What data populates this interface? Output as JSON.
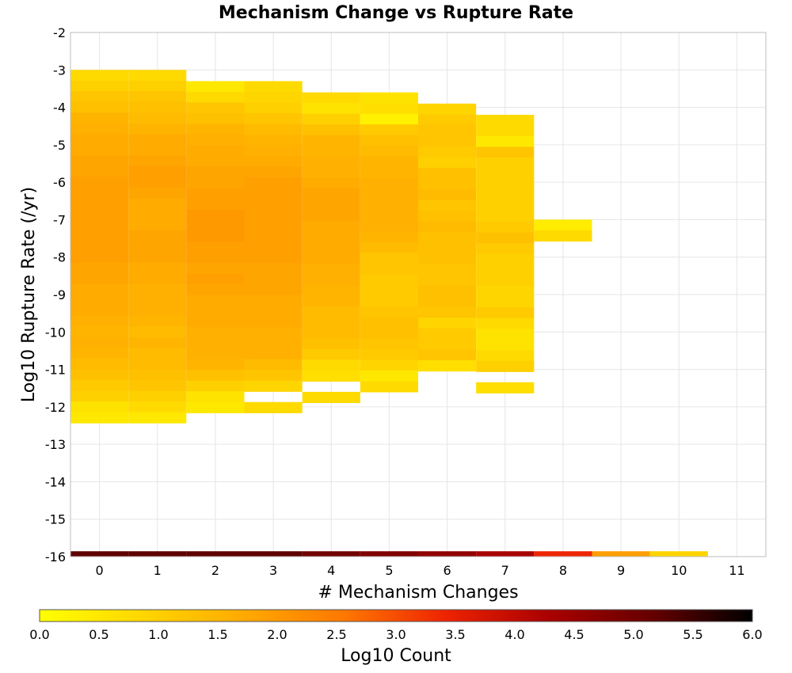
{
  "chart_data": {
    "type": "heatmap",
    "title": "Mechanism Change vs Rupture Rate",
    "xlabel": "# Mechanism Changes",
    "ylabel": "Log10 Rupture Rate (/yr)",
    "xlim": [
      -0.5,
      11.5
    ],
    "ylim": [
      -16,
      -2
    ],
    "x_ticks": [
      0,
      1,
      2,
      3,
      4,
      5,
      6,
      7,
      8,
      9,
      10,
      11
    ],
    "y_ticks": [
      -2,
      -3,
      -4,
      -5,
      -6,
      -7,
      -8,
      -9,
      -10,
      -11,
      -12,
      -13,
      -14,
      -15,
      -16
    ],
    "y_bin_size": 0.2857,
    "colorbar": {
      "label": "Log10 Count",
      "range": [
        0,
        6
      ],
      "ticks": [
        "0.0",
        "0.5",
        "1.0",
        "1.5",
        "2.0",
        "2.5",
        "3.0",
        "3.5",
        "4.0",
        "4.5",
        "5.0",
        "5.5",
        "6.0"
      ],
      "stops": [
        "#ffff00",
        "#ffd700",
        "#ffaa00",
        "#ff7700",
        "#ee2200",
        "#aa0000",
        "#660000",
        "#000000"
      ]
    },
    "columns": [
      {
        "x": 0,
        "y_top": -3.0,
        "values": [
          0.8,
          1.0,
          1.2,
          1.3,
          1.5,
          1.6,
          1.7,
          1.7,
          1.8,
          1.8,
          1.9,
          1.9,
          1.9,
          1.9,
          1.9,
          1.9,
          1.9,
          1.9,
          1.8,
          1.8,
          1.7,
          1.7,
          1.7,
          1.6,
          1.5,
          1.6,
          1.5,
          1.4,
          1.3,
          1.1,
          1.0,
          0.6,
          0.5
        ]
      },
      {
        "x": 1,
        "y_top": -3.0,
        "values": [
          0.8,
          1.0,
          1.2,
          1.3,
          1.4,
          1.5,
          1.7,
          1.7,
          1.8,
          1.9,
          1.9,
          1.8,
          1.7,
          1.7,
          1.7,
          1.8,
          1.8,
          1.8,
          1.7,
          1.7,
          1.6,
          1.6,
          1.6,
          1.5,
          1.4,
          1.5,
          1.4,
          1.4,
          1.3,
          1.2,
          1.0,
          0.8,
          0.5
        ]
      },
      {
        "x": 2,
        "y_top": -3.3,
        "values": [
          0.5,
          0.8,
          1.2,
          1.3,
          1.5,
          1.6,
          1.7,
          1.7,
          1.8,
          1.8,
          1.9,
          1.9,
          2.0,
          2.0,
          2.0,
          1.9,
          1.9,
          1.8,
          1.9,
          1.8,
          1.7,
          1.7,
          1.7,
          1.6,
          1.6,
          1.6,
          1.5,
          1.3,
          1.0,
          0.6,
          0.5
        ]
      },
      {
        "x": 3,
        "y_top": -3.3,
        "values": [
          0.8,
          0.9,
          1.0,
          1.2,
          1.4,
          1.5,
          1.6,
          1.7,
          1.8,
          1.9,
          1.9,
          1.9,
          1.9,
          1.9,
          1.9,
          1.9,
          1.9,
          1.8,
          1.8,
          1.8,
          1.7,
          1.7,
          1.7,
          1.6,
          1.6,
          1.6,
          1.4,
          1.2,
          0.9,
          null,
          0.8
        ]
      },
      {
        "x": 4,
        "y_top": -3.6,
        "values": [
          0.8,
          0.6,
          1.0,
          1.3,
          1.5,
          1.5,
          1.6,
          1.6,
          1.7,
          1.8,
          1.8,
          1.8,
          1.7,
          1.7,
          1.7,
          1.7,
          1.6,
          1.6,
          1.5,
          1.5,
          1.4,
          1.4,
          1.4,
          1.3,
          1.1,
          0.8,
          0.7,
          null,
          0.8
        ]
      },
      {
        "x": 5,
        "y_top": -3.6,
        "values": [
          0.6,
          0.7,
          0.3,
          1.1,
          1.3,
          1.4,
          1.5,
          1.5,
          1.6,
          1.6,
          1.6,
          1.6,
          1.6,
          1.5,
          1.4,
          1.2,
          1.2,
          1.1,
          1.1,
          1.1,
          1.2,
          1.3,
          1.3,
          1.2,
          1.1,
          0.9,
          0.5,
          0.8
        ]
      },
      {
        "x": 6,
        "y_top": -3.9,
        "values": [
          0.9,
          1.1,
          1.2,
          1.2,
          1.1,
          1.0,
          1.3,
          1.3,
          1.4,
          1.2,
          1.3,
          1.4,
          1.3,
          1.3,
          1.3,
          1.2,
          1.2,
          1.3,
          1.3,
          1.2,
          0.9,
          1.1,
          1.1,
          1.2,
          0.7
        ]
      },
      {
        "x": 7,
        "y_top": -4.2,
        "values": [
          0.8,
          0.8,
          0.5,
          1.2,
          1.0,
          1.0,
          1.0,
          1.0,
          1.0,
          1.0,
          1.1,
          1.3,
          1.1,
          1.0,
          1.0,
          1.0,
          0.9,
          0.9,
          1.1,
          0.8,
          0.6,
          0.6,
          0.8,
          1.0,
          null,
          0.7
        ]
      },
      {
        "x": 8,
        "y_top": -7.0,
        "values": [
          0.4,
          0.8
        ]
      }
    ],
    "bottom_row": {
      "y": -16,
      "values": [
        5.2,
        5.2,
        5.2,
        5.2,
        5.0,
        4.8,
        4.6,
        4.3,
        3.4,
        1.9,
        0.9
      ]
    }
  }
}
